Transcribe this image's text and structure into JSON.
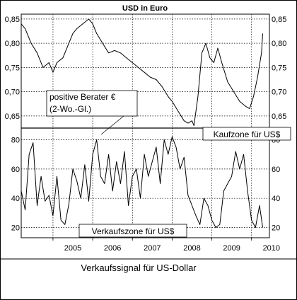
{
  "chart_data": [
    {
      "type": "line",
      "title": "USD in Euro",
      "ylim": [
        0.625,
        0.86
      ],
      "yticks": [
        0.65,
        0.7,
        0.75,
        0.8,
        0.85
      ],
      "ytick_labels": [
        "0,65",
        "0,70",
        "0,75",
        "0,80",
        "0,85"
      ],
      "grid": true,
      "x": [
        2004.2,
        2004.3,
        2004.45,
        2004.6,
        2004.75,
        2004.9,
        2005.0,
        2005.1,
        2005.25,
        2005.4,
        2005.5,
        2005.6,
        2005.75,
        2005.9,
        2006.0,
        2006.1,
        2006.25,
        2006.4,
        2006.55,
        2006.7,
        2006.85,
        2007.0,
        2007.15,
        2007.3,
        2007.45,
        2007.6,
        2007.75,
        2007.9,
        2008.0,
        2008.15,
        2008.3,
        2008.4,
        2008.5,
        2008.55,
        2008.65,
        2008.75,
        2008.85,
        2008.95,
        2009.05,
        2009.15,
        2009.25,
        2009.4,
        2009.55,
        2009.7,
        2009.85,
        2009.95,
        2010.05,
        2010.15,
        2010.25,
        2010.28
      ],
      "values": [
        0.84,
        0.83,
        0.8,
        0.78,
        0.75,
        0.76,
        0.74,
        0.76,
        0.77,
        0.8,
        0.82,
        0.83,
        0.84,
        0.85,
        0.84,
        0.82,
        0.8,
        0.78,
        0.785,
        0.78,
        0.77,
        0.76,
        0.75,
        0.74,
        0.73,
        0.725,
        0.71,
        0.69,
        0.68,
        0.66,
        0.64,
        0.635,
        0.64,
        0.63,
        0.69,
        0.78,
        0.8,
        0.77,
        0.76,
        0.79,
        0.76,
        0.72,
        0.7,
        0.68,
        0.67,
        0.665,
        0.69,
        0.73,
        0.78,
        0.82
      ]
    },
    {
      "type": "line",
      "ylim": [
        13,
        88
      ],
      "yticks": [
        20,
        40,
        60,
        80
      ],
      "ytick_labels": [
        "20",
        "40",
        "60",
        "80"
      ],
      "categories": [
        "2005",
        "2006",
        "2007",
        "2008",
        "2009",
        "2010"
      ],
      "xlim": [
        2004.2,
        2010.45
      ],
      "grid": true,
      "x": [
        2004.2,
        2004.3,
        2004.4,
        2004.5,
        2004.6,
        2004.7,
        2004.8,
        2004.9,
        2005.0,
        2005.1,
        2005.2,
        2005.3,
        2005.4,
        2005.5,
        2005.6,
        2005.7,
        2005.8,
        2005.9,
        2006.0,
        2006.1,
        2006.2,
        2006.3,
        2006.4,
        2006.5,
        2006.6,
        2006.7,
        2006.8,
        2006.9,
        2007.0,
        2007.1,
        2007.2,
        2007.3,
        2007.4,
        2007.5,
        2007.6,
        2007.7,
        2007.8,
        2007.9,
        2008.0,
        2008.1,
        2008.2,
        2008.3,
        2008.4,
        2008.5,
        2008.6,
        2008.7,
        2008.8,
        2008.9,
        2009.0,
        2009.1,
        2009.2,
        2009.3,
        2009.4,
        2009.5,
        2009.6,
        2009.7,
        2009.8,
        2009.9,
        2010.0,
        2010.1,
        2010.2,
        2010.28
      ],
      "values": [
        45,
        32,
        70,
        78,
        35,
        55,
        38,
        42,
        28,
        55,
        25,
        22,
        36,
        60,
        52,
        40,
        63,
        38,
        70,
        80,
        55,
        50,
        70,
        45,
        65,
        50,
        72,
        35,
        55,
        60,
        40,
        70,
        55,
        65,
        75,
        50,
        80,
        70,
        82,
        75,
        60,
        68,
        42,
        35,
        28,
        22,
        40,
        35,
        25,
        20,
        22,
        45,
        50,
        55,
        72,
        60,
        70,
        45,
        25,
        20,
        35,
        20
      ]
    }
  ],
  "annotations": {
    "positive_berater_line1": "positive Berater €",
    "positive_berater_line2": "(2-Wo.-Gl.)",
    "kaufzone": "Kaufzone für US$",
    "verkaufszone": "Verkaufszone für US$"
  },
  "caption": "Verkaufssignal für US-Dollar"
}
